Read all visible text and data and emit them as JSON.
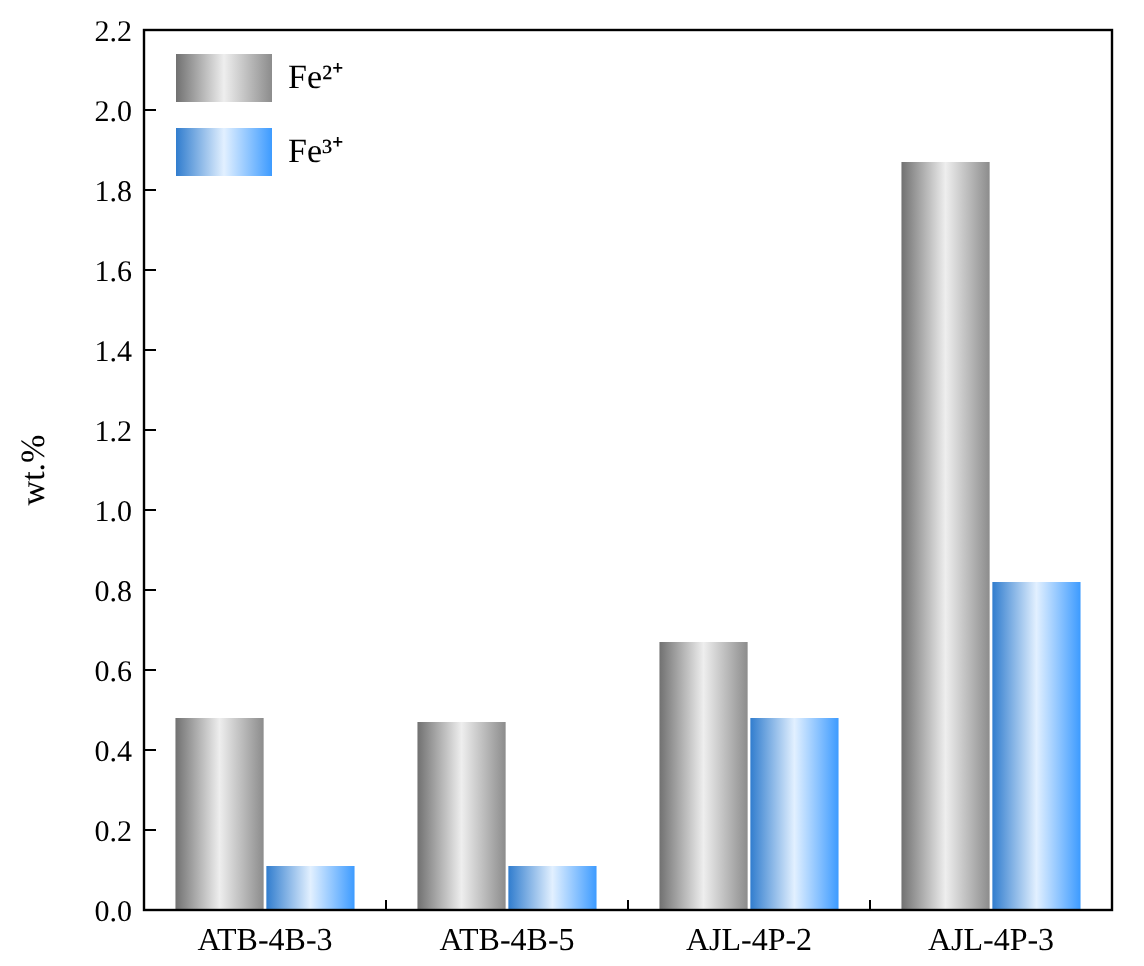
{
  "chart_data": {
    "type": "bar",
    "ylabel": "wt.%",
    "categories": [
      "ATB-4B-3",
      "ATB-4B-5",
      "AJL-4P-2",
      "AJL-4P-3"
    ],
    "series": [
      {
        "name": "Fe²⁺",
        "color": "#8c8c8c",
        "values": [
          0.48,
          0.47,
          0.67,
          1.87
        ]
      },
      {
        "name": "Fe³⁺",
        "color": "#3d9bff",
        "values": [
          0.11,
          0.11,
          0.48,
          0.82
        ]
      }
    ],
    "ylim": [
      0,
      2.2
    ],
    "yticks": [
      {
        "value": 0,
        "label": "0.0"
      },
      0.2,
      0.4,
      0.6,
      0.8,
      {
        "value": 1,
        "label": "1.0"
      },
      1.2,
      1.4,
      1.6,
      1.8,
      {
        "value": 2,
        "label": "2.0"
      },
      2.2
    ],
    "legend": "top left",
    "grid": false
  }
}
